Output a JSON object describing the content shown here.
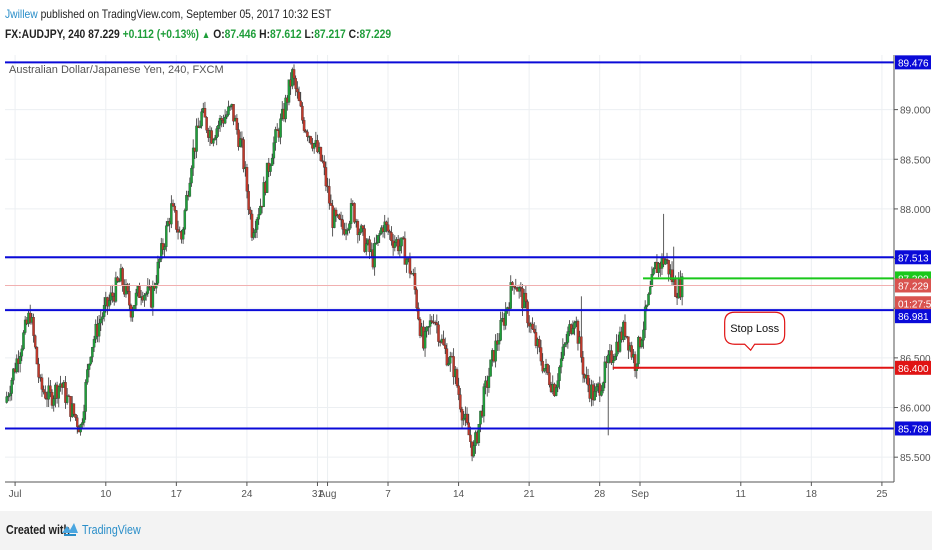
{
  "header": {
    "user": "Jwillew",
    "published": "published on TradingView.com, September 05, 2017 10:32 EST",
    "symbol": "FX:AUDJPY, 240",
    "last": "87.229",
    "change": "+0.112 (+0.13%)",
    "arrow": "▲",
    "open_label": "O:",
    "open": "87.446",
    "high_label": "H:",
    "high": "87.612",
    "low_label": "L:",
    "low": "87.217",
    "close_label": "C:",
    "close": "87.229"
  },
  "footer": {
    "created_with": "Created with",
    "brand": "TradingView",
    "logo_icon": "tradingview-logo-icon"
  },
  "chart_data": {
    "type": "candlestick",
    "title": "Australian Dollar/Japanese Yen, 240, FXCM",
    "ylim": [
      85.25,
      89.55
    ],
    "y_ticks": [
      85.5,
      86.0,
      86.5,
      87.0,
      87.5,
      88.0,
      88.5,
      89.0
    ],
    "y_tick_labels": [
      "85.500",
      "86.000",
      "86.500",
      "87.000",
      "87.500",
      "88.000",
      "88.500",
      "89.000"
    ],
    "x_ticks": [
      {
        "label": "Jul",
        "day": 0
      },
      {
        "label": "10",
        "day": 9
      },
      {
        "label": "17",
        "day": 16
      },
      {
        "label": "24",
        "day": 23
      },
      {
        "label": "31",
        "day": 30
      },
      {
        "label": "Aug",
        "day": 31
      },
      {
        "label": "7",
        "day": 37
      },
      {
        "label": "14",
        "day": 44
      },
      {
        "label": "21",
        "day": 51
      },
      {
        "label": "28",
        "day": 58
      },
      {
        "label": "Sep",
        "day": 62
      },
      {
        "label": "11",
        "day": 72
      },
      {
        "label": "18",
        "day": 79
      },
      {
        "label": "25",
        "day": 86
      }
    ],
    "xlim_days": [
      -1,
      87.2
    ],
    "last_day": 66.3,
    "price_path": [
      [
        -1,
        86.05
      ],
      [
        0.5,
        86.6
      ],
      [
        1.5,
        86.95
      ],
      [
        2.5,
        86.2
      ],
      [
        3.5,
        86.1
      ],
      [
        4.5,
        86.25
      ],
      [
        5.5,
        86.0
      ],
      [
        6.5,
        85.8
      ],
      [
        7.5,
        86.6
      ],
      [
        8.5,
        86.9
      ],
      [
        9.5,
        87.1
      ],
      [
        10.5,
        87.3
      ],
      [
        11.5,
        87.0
      ],
      [
        12.5,
        87.2
      ],
      [
        13.5,
        87.1
      ],
      [
        14.5,
        87.55
      ],
      [
        15.5,
        88.0
      ],
      [
        16.5,
        87.7
      ],
      [
        17.5,
        88.5
      ],
      [
        18.5,
        88.95
      ],
      [
        19.5,
        88.75
      ],
      [
        20.5,
        88.9
      ],
      [
        21.5,
        89.0
      ],
      [
        22.5,
        88.6
      ],
      [
        23.5,
        87.8
      ],
      [
        24.5,
        88.1
      ],
      [
        25.5,
        88.6
      ],
      [
        26.5,
        88.9
      ],
      [
        27.5,
        89.35
      ],
      [
        28.5,
        88.9
      ],
      [
        29.5,
        88.7
      ],
      [
        30.5,
        88.45
      ],
      [
        31.5,
        87.9
      ],
      [
        32.5,
        87.8
      ],
      [
        33.5,
        88.0
      ],
      [
        34.5,
        87.7
      ],
      [
        35.5,
        87.5
      ],
      [
        36.5,
        87.85
      ],
      [
        37.5,
        87.7
      ],
      [
        38.5,
        87.6
      ],
      [
        39.5,
        87.3
      ],
      [
        40.5,
        86.6
      ],
      [
        41.5,
        86.95
      ],
      [
        42.5,
        86.6
      ],
      [
        43.5,
        86.4
      ],
      [
        44.5,
        85.9
      ],
      [
        45.5,
        85.55
      ],
      [
        46.5,
        86.1
      ],
      [
        47.5,
        86.55
      ],
      [
        48.5,
        86.9
      ],
      [
        49.5,
        87.3
      ],
      [
        50.5,
        87.05
      ],
      [
        51.5,
        86.7
      ],
      [
        52.5,
        86.4
      ],
      [
        53.5,
        86.2
      ],
      [
        54.5,
        86.6
      ],
      [
        55.5,
        86.95
      ],
      [
        56.5,
        86.3
      ],
      [
        57.5,
        86.1
      ],
      [
        58.5,
        86.35
      ],
      [
        59.5,
        86.6
      ],
      [
        60.5,
        86.8
      ],
      [
        61.5,
        86.45
      ],
      [
        62.5,
        86.9
      ],
      [
        63.5,
        87.4
      ],
      [
        64.5,
        87.5
      ],
      [
        65.5,
        87.2
      ],
      [
        66.3,
        87.229
      ]
    ],
    "candle_extras": [
      {
        "day": 58.8,
        "low": 85.72
      },
      {
        "day": 56.2,
        "high": 87.12
      },
      {
        "day": 65.3,
        "high": 87.62
      },
      {
        "day": 64.4,
        "high": 87.95
      },
      {
        "day": 45.4,
        "low": 85.5
      }
    ],
    "horizontal_lines": [
      {
        "price": 89.476,
        "color": "#0a0ad8",
        "width": 2,
        "from_day": -1
      },
      {
        "price": 87.513,
        "color": "#0a0ad8",
        "width": 2,
        "from_day": -1
      },
      {
        "price": 86.981,
        "color": "#0a0ad8",
        "width": 2,
        "from_day": -1
      },
      {
        "price": 85.789,
        "color": "#0a0ad8",
        "width": 2,
        "from_day": -1
      },
      {
        "price": 87.3,
        "color": "#19c81a",
        "width": 2,
        "from_day": 62.3
      },
      {
        "price": 86.4,
        "color": "#e01414",
        "width": 2,
        "from_day": 59.3
      }
    ],
    "last_price_line": {
      "price": 87.229,
      "color": "#f1b0b0"
    },
    "price_labels": [
      {
        "text": "89.476",
        "price": 89.476,
        "bg": "#0a0ad8",
        "fg": "#ffffff"
      },
      {
        "text": "87.513",
        "price": 87.513,
        "bg": "#0a0ad8",
        "fg": "#ffffff"
      },
      {
        "text": "87.300",
        "price": 87.3,
        "bg": "#19c81a",
        "fg": "#ffffff"
      },
      {
        "text": "87.229",
        "price": 87.229,
        "bg": "#d9534f",
        "fg": "#ffffff"
      },
      {
        "text": "01:27:56",
        "price": 87.05,
        "bg": "#d9534f",
        "fg": "#ffffff"
      },
      {
        "text": "86.981",
        "price": 86.92,
        "bg": "#0a0ad8",
        "fg": "#ffffff"
      },
      {
        "text": "86.400",
        "price": 86.4,
        "bg": "#e01414",
        "fg": "#ffffff"
      },
      {
        "text": "85.789",
        "price": 85.789,
        "bg": "#0a0ad8",
        "fg": "#ffffff"
      }
    ],
    "annotation": {
      "text": "Stop Loss",
      "border": "#e01414"
    },
    "colors": {
      "up": "#1f9e3a",
      "down": "#c0392b",
      "grid": "#eceff2",
      "axis": "#555555"
    },
    "grid": true
  }
}
